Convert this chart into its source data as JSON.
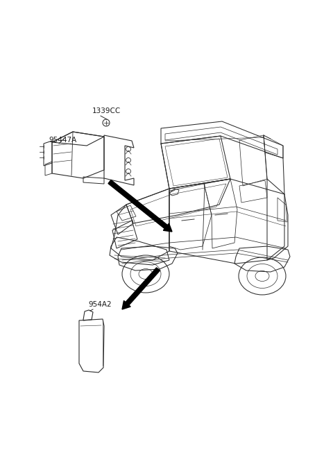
{
  "background_color": "#ffffff",
  "figsize": [
    4.8,
    6.56
  ],
  "dpi": 100,
  "label_1339CC": "1339CC",
  "label_95447A": "95447A",
  "label_954A2": "954A2",
  "line_color": "#1a1a1a",
  "car_color": "#2a2a2a",
  "part_color": "#2a2a2a",
  "arrow_color": "#000000",
  "fs_label": 7.5
}
